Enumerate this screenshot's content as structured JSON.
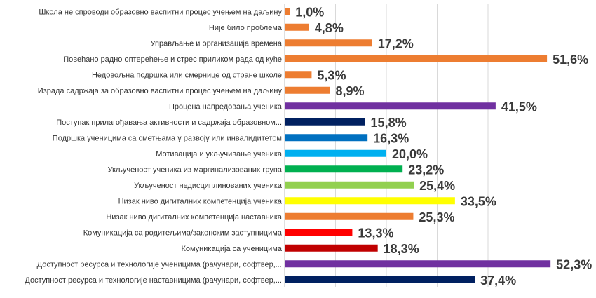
{
  "chart_data": {
    "type": "bar",
    "orientation": "horizontal",
    "title": "",
    "xlabel": "",
    "ylabel": "",
    "xlim": [
      0,
      50
    ],
    "grid": true,
    "value_suffix": "%",
    "categories": [
      "Школа не спроводи образовно васпитни процес учењем на даљину",
      "Није било проблема",
      "Управљање и организација времена",
      "Повећано радно оптерећење и стрес приликом рада од куће",
      "Недовољна подршка или смернице од стране школе",
      "Израда садржаја за образовно васпитни процес учењем на даљину",
      "Процена напредовања ученика",
      "Поступак прилагођавања активности и садржаја образовном...",
      "Подршка ученицима са сметњама у развоју или инвалидитетом",
      "Мотивација и укључивање ученика",
      "Укљученост ученика из маргинализованих група",
      "Укљученост недисциплинованих ученика",
      "Низак ниво дигиталних компетенција ученика",
      "Низак ниво дигиталних компетенција наставника",
      "Комуникација са родитељима/законским заступницима",
      "Комуникација са ученицима",
      "Доступност ресурса и технологије ученицима (рачунари, софтвер,...",
      "Доступност ресурса и технологије наставницима (рачунари, софтвер,..."
    ],
    "values": [
      1.0,
      4.8,
      17.2,
      51.6,
      5.3,
      8.9,
      41.5,
      15.8,
      16.3,
      20.0,
      23.2,
      25.4,
      33.5,
      25.3,
      13.3,
      18.3,
      52.3,
      37.4
    ],
    "value_labels": [
      "1,0%",
      "4,8%",
      "17,2%",
      "51,6%",
      "5,3%",
      "8,9%",
      "41,5%",
      "15,8%",
      "16,3%",
      "20,0%",
      "23,2%",
      "25,4%",
      "33,5%",
      "25,3%",
      "13,3%",
      "18,3%",
      "52,3%",
      "37,4%"
    ],
    "colors": [
      "#ED7D31",
      "#ED7D31",
      "#ED7D31",
      "#ED7D31",
      "#ED7D31",
      "#ED7D31",
      "#7030A0",
      "#002060",
      "#0070C0",
      "#00B0F0",
      "#00B050",
      "#92D050",
      "#FFFF00",
      "#ED7D31",
      "#FF0000",
      "#C00000",
      "#7030A0",
      "#002060"
    ]
  }
}
